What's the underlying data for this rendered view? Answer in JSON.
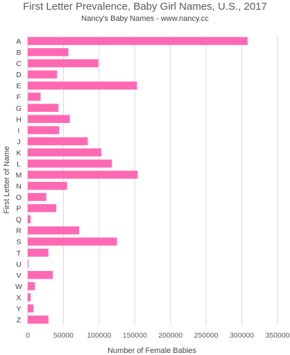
{
  "chart_data": {
    "type": "bar",
    "orientation": "horizontal",
    "title": "First Letter Prevalence, Baby Girl Names, U.S., 2017",
    "subtitle": "Nancy's Baby Names - www.nancy.cc",
    "xlabel": "Number of Female Babies",
    "ylabel": "First Letter of Name",
    "xlim": [
      0,
      350000
    ],
    "xticks": [
      "0",
      "50000",
      "100000",
      "150000",
      "200000",
      "250000",
      "300000",
      "350000"
    ],
    "grid": true,
    "bar_color": "#ff69b4",
    "categories": [
      "A",
      "B",
      "C",
      "D",
      "E",
      "F",
      "G",
      "H",
      "I",
      "J",
      "K",
      "L",
      "M",
      "N",
      "O",
      "P",
      "Q",
      "R",
      "S",
      "T",
      "U",
      "V",
      "W",
      "X",
      "Y",
      "Z"
    ],
    "values": [
      308000,
      57000,
      99000,
      41000,
      153000,
      18000,
      43000,
      59000,
      44000,
      84000,
      103000,
      118000,
      154000,
      55000,
      26000,
      40000,
      4000,
      72000,
      125000,
      29000,
      1000,
      35000,
      10000,
      4000,
      8000,
      29000
    ]
  }
}
